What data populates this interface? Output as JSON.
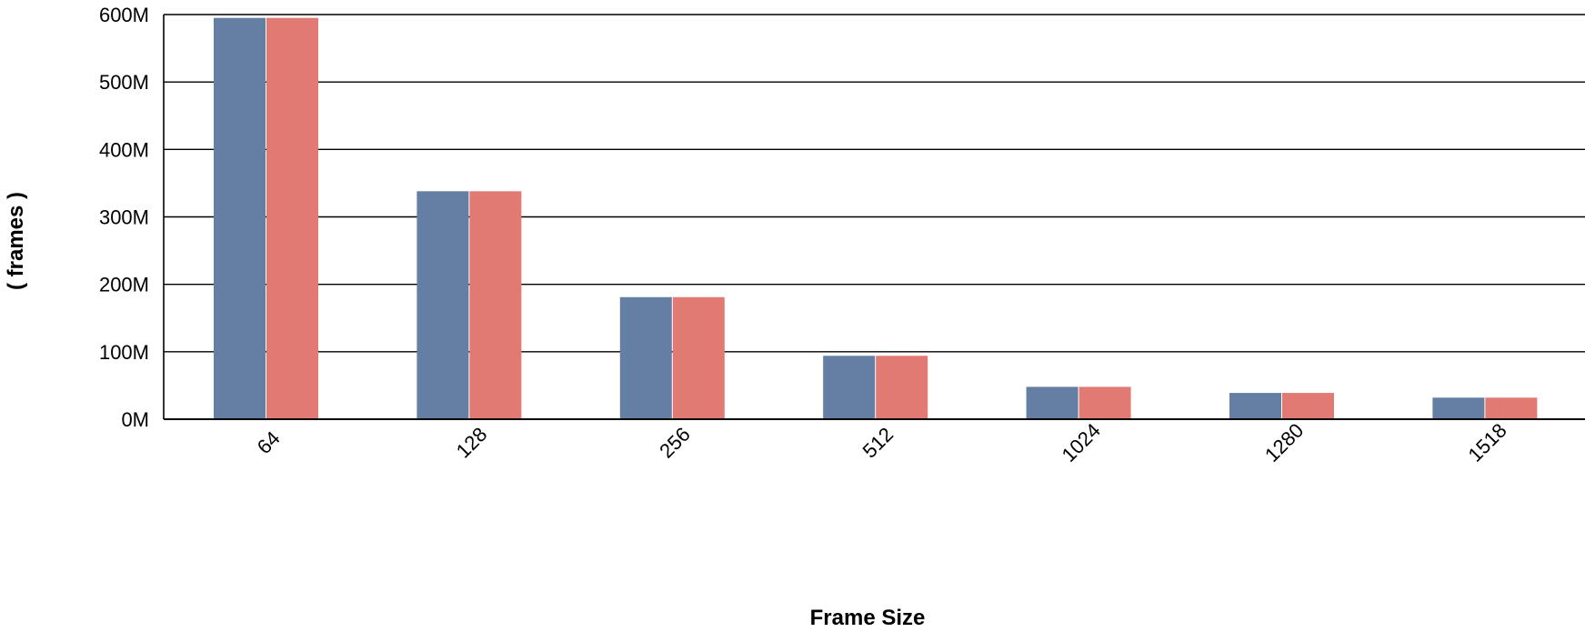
{
  "chart_data": {
    "type": "bar",
    "categories": [
      "64",
      "128",
      "256",
      "512",
      "1024",
      "1280",
      "1518"
    ],
    "series": [
      {
        "values": [
          595000000,
          338000000,
          181000000,
          94000000,
          48000000,
          39000000,
          32000000
        ],
        "color": "#647ea4"
      },
      {
        "values": [
          595000000,
          338000000,
          181000000,
          94000000,
          48000000,
          39000000,
          32000000
        ],
        "color": "#e07a73"
      }
    ],
    "xlabel": "Frame Size",
    "ylabel": "( frames )",
    "ylim": [
      0,
      600000000
    ],
    "yticks": [
      {
        "value": 0,
        "label": "0M"
      },
      {
        "value": 100000000,
        "label": "100M"
      },
      {
        "value": 200000000,
        "label": "200M"
      },
      {
        "value": 300000000,
        "label": "300M"
      },
      {
        "value": 400000000,
        "label": "400M"
      },
      {
        "value": 500000000,
        "label": "500M"
      },
      {
        "value": 600000000,
        "label": "600M"
      }
    ],
    "grid": true,
    "legend": "none"
  }
}
